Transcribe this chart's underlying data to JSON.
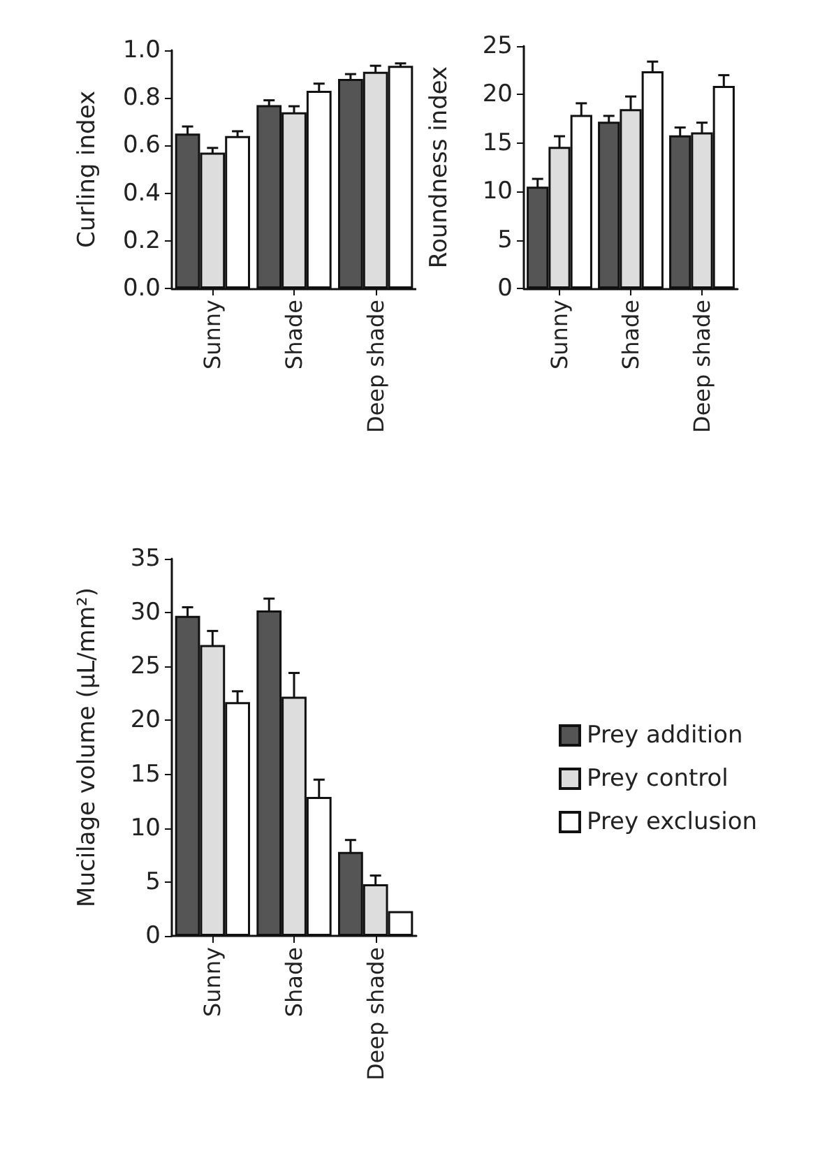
{
  "chart_data": [
    {
      "type": "bar",
      "ylabel": "Curling index",
      "categories": [
        "Sunny",
        "Shade",
        "Deep shade"
      ],
      "ylim": [
        0,
        1
      ],
      "yticks": [
        {
          "value": 0,
          "label": "0.0"
        },
        0.2,
        0.4,
        0.6,
        0.8,
        {
          "value": 1,
          "label": "1.0"
        }
      ],
      "grid": false,
      "series": [
        {
          "color": "#555555",
          "values": [
            0.65,
            0.77,
            0.88
          ],
          "errors": [
            0.03,
            0.02,
            0.02
          ]
        },
        {
          "color": "#dddddd",
          "values": [
            0.57,
            0.74,
            0.91
          ],
          "errors": [
            0.02,
            0.025,
            0.025
          ]
        },
        {
          "color": "#ffffff",
          "values": [
            0.64,
            0.83,
            0.935
          ],
          "errors": [
            0.02,
            0.03,
            0.01
          ]
        }
      ]
    },
    {
      "type": "bar",
      "ylabel": "Roundness index",
      "categories": [
        "Sunny",
        "Shade",
        "Deep shade"
      ],
      "ylim": [
        0,
        25
      ],
      "yticks": [
        0,
        5,
        10,
        15,
        20,
        25
      ],
      "grid": false,
      "series": [
        {
          "color": "#555555",
          "values": [
            10.5,
            17.2,
            15.8
          ],
          "errors": [
            0.8,
            0.6,
            0.8
          ]
        },
        {
          "color": "#dddddd",
          "values": [
            14.6,
            18.5,
            16.1
          ],
          "errors": [
            1.1,
            1.3,
            1.0
          ]
        },
        {
          "color": "#ffffff",
          "values": [
            17.9,
            22.4,
            20.9
          ],
          "errors": [
            1.2,
            1.0,
            1.1
          ]
        }
      ]
    },
    {
      "type": "bar",
      "ylabel": "Mucilage volume (μL/mm²)",
      "categories": [
        "Sunny",
        "Shade",
        "Deep shade"
      ],
      "ylim": [
        0,
        35
      ],
      "yticks": [
        0,
        5,
        10,
        15,
        20,
        25,
        30,
        35
      ],
      "grid": false,
      "legend": "right",
      "series": [
        {
          "name": "Prey addition",
          "color": "#555555",
          "values": [
            29.7,
            30.2,
            7.8
          ],
          "errors": [
            0.8,
            1.1,
            1.1
          ]
        },
        {
          "name": "Prey control",
          "color": "#dddddd",
          "values": [
            27.0,
            22.2,
            4.8
          ],
          "errors": [
            1.3,
            2.2,
            0.8
          ]
        },
        {
          "name": "Prey exclusion",
          "color": "#ffffff",
          "values": [
            21.7,
            12.9,
            2.3
          ],
          "errors": [
            1.0,
            1.6,
            null
          ]
        }
      ]
    }
  ]
}
